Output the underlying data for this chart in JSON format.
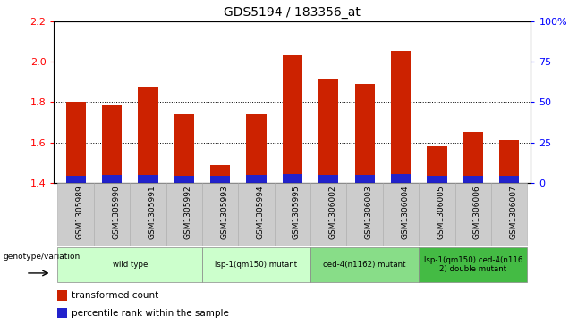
{
  "title": "GDS5194 / 183356_at",
  "samples": [
    "GSM1305989",
    "GSM1305990",
    "GSM1305991",
    "GSM1305992",
    "GSM1305993",
    "GSM1305994",
    "GSM1305995",
    "GSM1306002",
    "GSM1306003",
    "GSM1306004",
    "GSM1306005",
    "GSM1306006",
    "GSM1306007"
  ],
  "red_values": [
    1.8,
    1.782,
    1.871,
    1.742,
    1.49,
    1.742,
    2.03,
    1.912,
    1.89,
    2.052,
    1.58,
    1.652,
    1.61
  ],
  "blue_pct": [
    4.5,
    4.8,
    5.1,
    4.7,
    4.2,
    5.0,
    5.5,
    5.1,
    5.0,
    5.5,
    4.2,
    4.6,
    4.3
  ],
  "ymin": 1.4,
  "ymax": 2.2,
  "yticks_left": [
    1.4,
    1.6,
    1.8,
    2.0,
    2.2
  ],
  "right_yticks": [
    0,
    25,
    50,
    75,
    100
  ],
  "right_yticklabels": [
    "0",
    "25",
    "50",
    "75",
    "100%"
  ],
  "groups": [
    {
      "label": "wild type",
      "start": 0,
      "end": 4,
      "color": "#ccffcc"
    },
    {
      "label": "lsp-1(qm150) mutant",
      "start": 4,
      "end": 7,
      "color": "#ccffcc"
    },
    {
      "label": "ced-4(n1162) mutant",
      "start": 7,
      "end": 10,
      "color": "#88dd88"
    },
    {
      "label": "lsp-1(qm150) ced-4(n116\n2) double mutant",
      "start": 10,
      "end": 13,
      "color": "#44bb44"
    }
  ],
  "genotype_label": "genotype/variation",
  "legend_labels": [
    "transformed count",
    "percentile rank within the sample"
  ],
  "legend_colors": [
    "#cc2200",
    "#2222cc"
  ],
  "bar_width": 0.55,
  "sample_box_color": "#cccccc",
  "plot_bg": "white"
}
